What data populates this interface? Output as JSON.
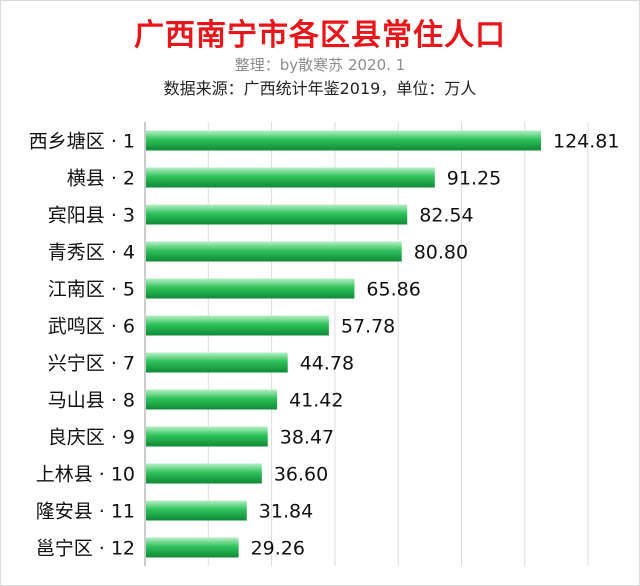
{
  "header": {
    "title": "广西南宁市各区县常住人口",
    "subtitle": "整理：by散寒苏  2020. 1",
    "source": "数据来源：广西统计年鉴2019，单位：万人"
  },
  "colors": {
    "title": "#e8161a",
    "bar_light": "#b7f0c7",
    "bar_mid": "#2fc25b",
    "bar_dark": "#0f8a36",
    "grid": "#dcdcdc",
    "axis": "#9a9a9a"
  },
  "chart_data": {
    "type": "bar",
    "orientation": "horizontal",
    "categories": [
      "西乡塘区 · 1",
      "横县 · 2",
      "宾阳县 · 3",
      "青秀区 · 4",
      "江南区 · 5",
      "武鸣区 · 6",
      "兴宁区 · 7",
      "马山县 · 8",
      "良庆区 · 9",
      "上林县 · 10",
      "隆安县 · 11",
      "邕宁区 · 12"
    ],
    "value_labels": [
      "124.81",
      "91.25",
      "82.54",
      "80.80",
      "65.86",
      "57.78",
      "44.78",
      "41.42",
      "38.47",
      "36.60",
      "31.84",
      "29.26"
    ],
    "values": [
      124.81,
      91.25,
      82.54,
      80.8,
      65.86,
      57.78,
      44.78,
      41.42,
      38.47,
      36.6,
      31.84,
      29.26
    ],
    "xlim": [
      0,
      140
    ],
    "grid": true,
    "legend": "none"
  }
}
